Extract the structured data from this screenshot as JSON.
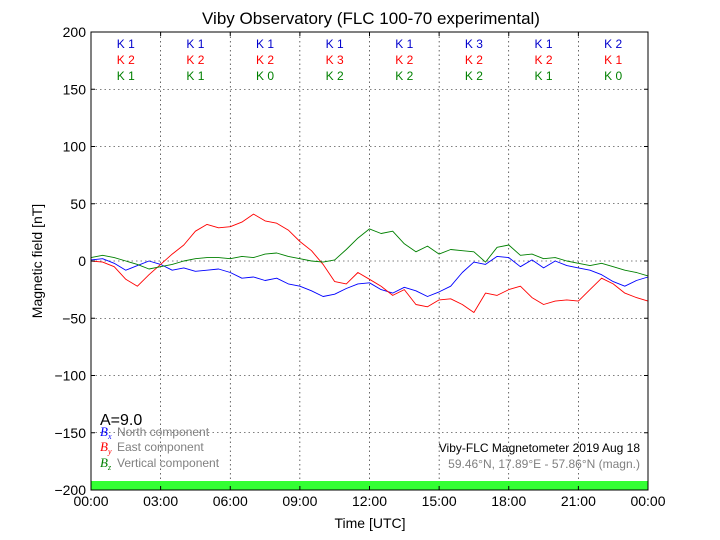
{
  "chart_data": {
    "type": "line",
    "title": "Viby Observatory (FLC 100-70 experimental)",
    "xlabel": "Time [UTC]",
    "ylabel": "Magnetic field [nT]",
    "xlim": [
      0,
      24
    ],
    "ylim": [
      -200,
      200
    ],
    "grid": true,
    "x_tick_values": [
      0,
      3,
      6,
      9,
      12,
      15,
      18,
      21,
      24
    ],
    "x_tick_labels": [
      "00:00",
      "03:00",
      "06:00",
      "09:00",
      "12:00",
      "15:00",
      "18:00",
      "21:00",
      "00:00"
    ],
    "y_tick_values": [
      200,
      150,
      100,
      50,
      0,
      -50,
      -100,
      -150,
      -200
    ],
    "y_tick_labels": [
      "200",
      "150",
      "100",
      "50",
      "0",
      "−50",
      "−100",
      "−150",
      "−200"
    ],
    "series": [
      {
        "name": "North component",
        "symbol": "B",
        "subscript": "x",
        "color": "#0000ff",
        "points": [
          [
            0,
            1
          ],
          [
            0.5,
            2
          ],
          [
            1,
            -2
          ],
          [
            1.5,
            -8
          ],
          [
            2,
            -4
          ],
          [
            2.5,
            0
          ],
          [
            3,
            -3
          ],
          [
            3.5,
            -8
          ],
          [
            4,
            -6
          ],
          [
            4.5,
            -9
          ],
          [
            5,
            -8
          ],
          [
            5.5,
            -7
          ],
          [
            6,
            -10
          ],
          [
            6.5,
            -15
          ],
          [
            7,
            -14
          ],
          [
            7.5,
            -17
          ],
          [
            8,
            -15
          ],
          [
            8.5,
            -20
          ],
          [
            9,
            -22
          ],
          [
            9.5,
            -26
          ],
          [
            10,
            -31
          ],
          [
            10.5,
            -29
          ],
          [
            11,
            -24
          ],
          [
            11.5,
            -20
          ],
          [
            12,
            -19
          ],
          [
            12.5,
            -25
          ],
          [
            13,
            -28
          ],
          [
            13.5,
            -23
          ],
          [
            14,
            -26
          ],
          [
            14.5,
            -31
          ],
          [
            15,
            -27
          ],
          [
            15.5,
            -22
          ],
          [
            16,
            -10
          ],
          [
            16.5,
            -1
          ],
          [
            17,
            -3
          ],
          [
            17.5,
            4
          ],
          [
            18,
            3
          ],
          [
            18.5,
            -5
          ],
          [
            19,
            1
          ],
          [
            19.5,
            -6
          ],
          [
            20,
            0
          ],
          [
            20.5,
            -4
          ],
          [
            21,
            -6
          ],
          [
            21.5,
            -8
          ],
          [
            22,
            -12
          ],
          [
            22.5,
            -18
          ],
          [
            23,
            -22
          ],
          [
            23.5,
            -17
          ],
          [
            24,
            -14
          ]
        ]
      },
      {
        "name": "East component",
        "symbol": "B",
        "subscript": "y",
        "color": "#ff0000",
        "points": [
          [
            0,
            0
          ],
          [
            0.5,
            -1
          ],
          [
            1,
            -5
          ],
          [
            1.5,
            -16
          ],
          [
            2,
            -22
          ],
          [
            2.5,
            -12
          ],
          [
            3,
            -3
          ],
          [
            3.5,
            6
          ],
          [
            4,
            14
          ],
          [
            4.5,
            26
          ],
          [
            5,
            32
          ],
          [
            5.5,
            29
          ],
          [
            6,
            30
          ],
          [
            6.5,
            34
          ],
          [
            7,
            41
          ],
          [
            7.5,
            35
          ],
          [
            8,
            33
          ],
          [
            8.5,
            27
          ],
          [
            9,
            17
          ],
          [
            9.5,
            9
          ],
          [
            10,
            -3
          ],
          [
            10.5,
            -18
          ],
          [
            11,
            -20
          ],
          [
            11.5,
            -10
          ],
          [
            12,
            -16
          ],
          [
            12.5,
            -22
          ],
          [
            13,
            -30
          ],
          [
            13.5,
            -25
          ],
          [
            14,
            -38
          ],
          [
            14.5,
            -40
          ],
          [
            15,
            -34
          ],
          [
            15.5,
            -33
          ],
          [
            16,
            -38
          ],
          [
            16.5,
            -45
          ],
          [
            17,
            -28
          ],
          [
            17.5,
            -30
          ],
          [
            18,
            -25
          ],
          [
            18.5,
            -22
          ],
          [
            19,
            -32
          ],
          [
            19.5,
            -38
          ],
          [
            20,
            -35
          ],
          [
            20.5,
            -34
          ],
          [
            21,
            -35
          ],
          [
            21.5,
            -25
          ],
          [
            22,
            -15
          ],
          [
            22.5,
            -20
          ],
          [
            23,
            -28
          ],
          [
            23.5,
            -32
          ],
          [
            24,
            -35
          ]
        ]
      },
      {
        "name": "Vertical component",
        "symbol": "B",
        "subscript": "z",
        "color": "#008000",
        "points": [
          [
            0,
            3
          ],
          [
            0.5,
            5
          ],
          [
            1,
            3
          ],
          [
            1.5,
            0
          ],
          [
            2,
            -3
          ],
          [
            2.5,
            -7
          ],
          [
            3,
            -5
          ],
          [
            3.5,
            -3
          ],
          [
            4,
            0
          ],
          [
            4.5,
            2
          ],
          [
            5,
            3
          ],
          [
            5.5,
            3
          ],
          [
            6,
            2
          ],
          [
            6.5,
            4
          ],
          [
            7,
            3
          ],
          [
            7.5,
            6
          ],
          [
            8,
            7
          ],
          [
            8.5,
            4
          ],
          [
            9,
            2
          ],
          [
            9.5,
            0
          ],
          [
            10,
            -1
          ],
          [
            10.5,
            1
          ],
          [
            11,
            10
          ],
          [
            11.5,
            20
          ],
          [
            12,
            28
          ],
          [
            12.5,
            24
          ],
          [
            13,
            26
          ],
          [
            13.5,
            15
          ],
          [
            14,
            8
          ],
          [
            14.5,
            13
          ],
          [
            15,
            6
          ],
          [
            15.5,
            10
          ],
          [
            16,
            9
          ],
          [
            16.5,
            8
          ],
          [
            17,
            -1
          ],
          [
            17.5,
            12
          ],
          [
            18,
            14
          ],
          [
            18.5,
            5
          ],
          [
            19,
            6
          ],
          [
            19.5,
            2
          ],
          [
            20,
            3
          ],
          [
            20.5,
            0
          ],
          [
            21,
            -2
          ],
          [
            21.5,
            -4
          ],
          [
            22,
            -2
          ],
          [
            22.5,
            -5
          ],
          [
            23,
            -8
          ],
          [
            23.5,
            -10
          ],
          [
            24,
            -13
          ]
        ]
      }
    ],
    "k_index": {
      "columns": [
        {
          "x": 1.5,
          "values": [
            "K 1",
            "K 2",
            "K 1"
          ]
        },
        {
          "x": 4.5,
          "values": [
            "K 1",
            "K 2",
            "K 1"
          ]
        },
        {
          "x": 7.5,
          "values": [
            "K 1",
            "K 2",
            "K 0"
          ]
        },
        {
          "x": 10.5,
          "values": [
            "K 1",
            "K 3",
            "K 2"
          ]
        },
        {
          "x": 13.5,
          "values": [
            "K 1",
            "K 2",
            "K 2"
          ]
        },
        {
          "x": 16.5,
          "values": [
            "K 3",
            "K 2",
            "K 2"
          ]
        },
        {
          "x": 19.5,
          "values": [
            "K 1",
            "K 2",
            "K 1"
          ]
        },
        {
          "x": 22.5,
          "values": [
            "K 2",
            "K 1",
            "K 0"
          ]
        }
      ],
      "row_colors": [
        "#0000cc",
        "#ff0000",
        "#008000"
      ]
    },
    "a_index": "A=9.0",
    "station_info": "Viby-FLC Magnetometer 2019 Aug 18",
    "coordinates": "59.46°N, 17.89°E - 57.86°N (magn.)",
    "activity_bar_color": "#33ff33"
  }
}
